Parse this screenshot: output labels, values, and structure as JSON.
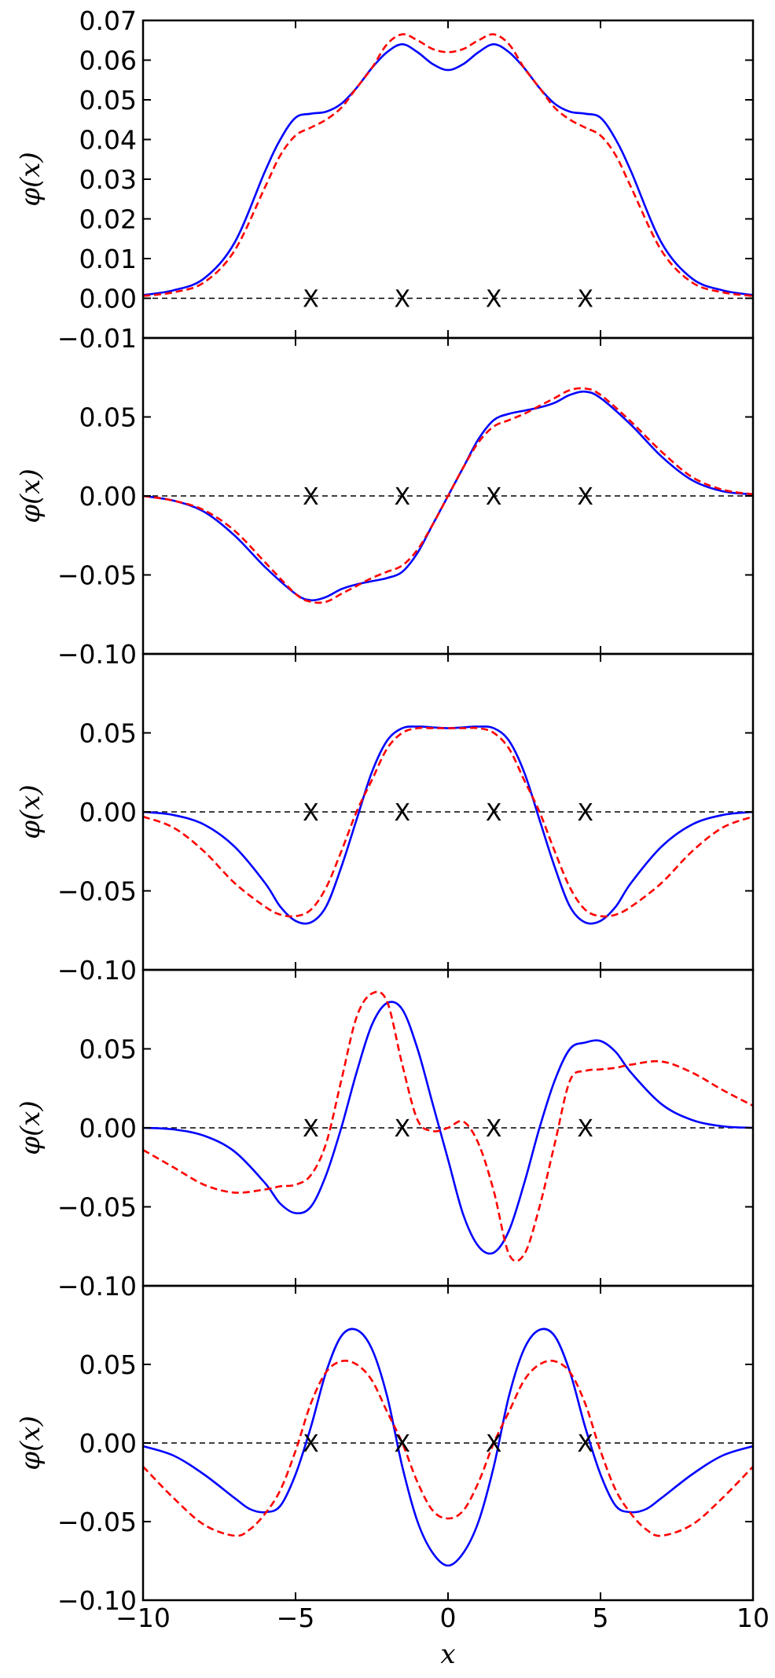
{
  "chart_data": [
    {
      "type": "line",
      "ylabel": "φ(x)",
      "xlim": [
        -10,
        10
      ],
      "ylim": [
        -0.01,
        0.07
      ],
      "yticks": [
        "0.07",
        "0.06",
        "0.05",
        "0.04",
        "0.03",
        "0.02",
        "0.01",
        "0.00",
        "−0.01"
      ],
      "ytick_values": [
        0.07,
        0.06,
        0.05,
        0.04,
        0.03,
        0.02,
        0.01,
        0.0,
        -0.01
      ],
      "x": [
        -10,
        -9,
        -8,
        -7,
        -6,
        -5.5,
        -5,
        -4.5,
        -4,
        -3.5,
        -3,
        -2.5,
        -2,
        -1.5,
        -1,
        -0.5,
        0,
        0.5,
        1,
        1.5,
        2,
        2.5,
        3,
        3.5,
        4,
        4.5,
        5,
        5.5,
        6,
        7,
        8,
        9,
        10
      ],
      "series": [
        {
          "values": [
            0.0008,
            0.002,
            0.005,
            0.014,
            0.032,
            0.04,
            0.0455,
            0.0465,
            0.047,
            0.049,
            0.053,
            0.058,
            0.062,
            0.064,
            0.062,
            0.059,
            0.0575,
            0.059,
            0.062,
            0.064,
            0.062,
            0.058,
            0.053,
            0.049,
            0.047,
            0.0465,
            0.0455,
            0.04,
            0.032,
            0.014,
            0.005,
            0.002,
            0.0008
          ],
          "color": "#0000ff",
          "dash": "solid"
        },
        {
          "values": [
            0.0006,
            0.0015,
            0.004,
            0.012,
            0.028,
            0.036,
            0.041,
            0.043,
            0.045,
            0.048,
            0.053,
            0.058,
            0.064,
            0.0665,
            0.065,
            0.0628,
            0.062,
            0.0628,
            0.065,
            0.0665,
            0.064,
            0.058,
            0.053,
            0.048,
            0.045,
            0.043,
            0.041,
            0.036,
            0.028,
            0.012,
            0.004,
            0.0015,
            0.0006
          ],
          "color": "#ff0000",
          "dash": "dashed"
        }
      ],
      "markers_x": [
        -4.5,
        -1.5,
        1.5,
        4.5
      ],
      "markers_y": 0,
      "marker_symbol": "X",
      "zero_line": true
    },
    {
      "type": "line",
      "ylabel": "φ(x)",
      "xlim": [
        -10,
        10
      ],
      "ylim": [
        -0.1,
        0.1
      ],
      "yticks": [
        "0.05",
        "0.00",
        "−0.05",
        "−0.10"
      ],
      "ytick_values": [
        0.05,
        0.0,
        -0.05,
        -0.1
      ],
      "x": [
        -10,
        -9,
        -8,
        -7,
        -6,
        -5,
        -4.5,
        -4,
        -3.5,
        -3,
        -2.5,
        -2,
        -1.5,
        -1,
        -0.5,
        0,
        0.5,
        1,
        1.5,
        2,
        2.5,
        3,
        3.5,
        4,
        4.5,
        5,
        6,
        7,
        8,
        9,
        10
      ],
      "series": [
        {
          "values": [
            0,
            -0.003,
            -0.01,
            -0.025,
            -0.045,
            -0.062,
            -0.066,
            -0.064,
            -0.059,
            -0.056,
            -0.054,
            -0.052,
            -0.048,
            -0.036,
            -0.018,
            0,
            0.018,
            0.036,
            0.048,
            0.052,
            0.054,
            0.056,
            0.059,
            0.064,
            0.066,
            0.062,
            0.045,
            0.025,
            0.01,
            0.003,
            0.001
          ],
          "color": "#0000ff",
          "dash": "solid"
        },
        {
          "values": [
            0,
            -0.003,
            -0.009,
            -0.022,
            -0.042,
            -0.062,
            -0.067,
            -0.067,
            -0.062,
            -0.057,
            -0.052,
            -0.048,
            -0.044,
            -0.034,
            -0.018,
            0,
            0.018,
            0.034,
            0.044,
            0.048,
            0.052,
            0.057,
            0.062,
            0.067,
            0.068,
            0.064,
            0.047,
            0.028,
            0.012,
            0.004,
            0.001
          ],
          "color": "#ff0000",
          "dash": "dashed"
        }
      ],
      "markers_x": [
        -4.5,
        -1.5,
        1.5,
        4.5
      ],
      "markers_y": 0,
      "marker_symbol": "X",
      "zero_line": true
    },
    {
      "type": "line",
      "ylabel": "φ(x)",
      "xlim": [
        -10,
        10
      ],
      "ylim": [
        -0.1,
        0.1
      ],
      "yticks": [
        "0.05",
        "0.00",
        "−0.05",
        "−0.10"
      ],
      "ytick_values": [
        0.05,
        0.0,
        -0.05,
        -0.1
      ],
      "x": [
        -10,
        -9,
        -8,
        -7,
        -6,
        -5.5,
        -5,
        -4.5,
        -4,
        -3.5,
        -3,
        -2.5,
        -2,
        -1.5,
        -1,
        -0.5,
        0,
        0.5,
        1,
        1.5,
        2,
        2.5,
        3,
        3.5,
        4,
        4.5,
        5,
        5.5,
        6,
        7,
        8,
        9,
        10
      ],
      "series": [
        {
          "values": [
            0,
            -0.002,
            -0.008,
            -0.022,
            -0.045,
            -0.06,
            -0.069,
            -0.07,
            -0.06,
            -0.035,
            -0.005,
            0.025,
            0.045,
            0.053,
            0.054,
            0.0535,
            0.053,
            0.0535,
            0.054,
            0.053,
            0.045,
            0.025,
            -0.005,
            -0.035,
            -0.06,
            -0.07,
            -0.069,
            -0.06,
            -0.045,
            -0.022,
            -0.008,
            -0.002,
            0
          ],
          "color": "#0000ff",
          "dash": "solid"
        },
        {
          "values": [
            -0.003,
            -0.01,
            -0.025,
            -0.045,
            -0.06,
            -0.065,
            -0.066,
            -0.062,
            -0.048,
            -0.025,
            0.0,
            0.02,
            0.04,
            0.05,
            0.053,
            0.053,
            0.053,
            0.053,
            0.053,
            0.05,
            0.04,
            0.02,
            0.0,
            -0.025,
            -0.048,
            -0.062,
            -0.066,
            -0.065,
            -0.06,
            -0.045,
            -0.025,
            -0.01,
            -0.003
          ],
          "color": "#ff0000",
          "dash": "dashed"
        }
      ],
      "markers_x": [
        -4.5,
        -1.5,
        1.5,
        4.5
      ],
      "markers_y": 0,
      "marker_symbol": "X",
      "zero_line": true
    },
    {
      "type": "line",
      "ylabel": "φ(x)",
      "xlim": [
        -10,
        10
      ],
      "ylim": [
        -0.1,
        0.1
      ],
      "yticks": [
        "0.05",
        "0.00",
        "−0.05",
        "−0.10"
      ],
      "ytick_values": [
        0.05,
        0.0,
        -0.05,
        -0.1
      ],
      "x": [
        -10,
        -9,
        -8,
        -7,
        -6,
        -5.5,
        -5,
        -4.5,
        -4,
        -3.5,
        -3,
        -2.5,
        -2,
        -1.5,
        -1,
        -0.5,
        0,
        0.5,
        1,
        1.5,
        2,
        2.5,
        3,
        3.5,
        4,
        4.5,
        5,
        5.5,
        6,
        7,
        8,
        9,
        10
      ],
      "series": [
        {
          "values": [
            0,
            -0.001,
            -0.005,
            -0.015,
            -0.035,
            -0.048,
            -0.054,
            -0.05,
            -0.03,
            0.0,
            0.035,
            0.065,
            0.079,
            0.075,
            0.05,
            0.015,
            -0.02,
            -0.055,
            -0.075,
            -0.079,
            -0.065,
            -0.035,
            0.0,
            0.03,
            0.05,
            0.054,
            0.055,
            0.048,
            0.035,
            0.015,
            0.005,
            0.001,
            0
          ],
          "color": "#0000ff",
          "dash": "solid"
        },
        {
          "values": [
            -0.014,
            -0.025,
            -0.036,
            -0.041,
            -0.039,
            -0.037,
            -0.036,
            -0.03,
            -0.01,
            0.03,
            0.07,
            0.085,
            0.08,
            0.04,
            0.005,
            -0.002,
            0.0,
            0.004,
            -0.01,
            -0.04,
            -0.08,
            -0.08,
            -0.05,
            -0.01,
            0.03,
            0.036,
            0.037,
            0.038,
            0.04,
            0.042,
            0.035,
            0.024,
            0.014
          ],
          "color": "#ff0000",
          "dash": "dashed"
        }
      ],
      "markers_x": [
        -4.5,
        -1.5,
        1.5,
        4.5
      ],
      "markers_y": 0,
      "marker_symbol": "X",
      "zero_line": true
    },
    {
      "type": "line",
      "ylabel": "φ(x)",
      "xlabel": "x",
      "xlim": [
        -10,
        10
      ],
      "ylim": [
        -0.1,
        0.1
      ],
      "yticks": [
        "0.05",
        "0.00",
        "−0.05",
        "−0.10"
      ],
      "ytick_values": [
        0.05,
        0.0,
        -0.05,
        -0.1
      ],
      "xticks": [
        "−10",
        "−5",
        "0",
        "5",
        "10"
      ],
      "xtick_values": [
        -10,
        -5,
        0,
        5,
        10
      ],
      "x": [
        -10,
        -9,
        -8,
        -7,
        -6.5,
        -6,
        -5.5,
        -5,
        -4.5,
        -4,
        -3.5,
        -3,
        -2.5,
        -2,
        -1.5,
        -1,
        -0.5,
        0,
        0.5,
        1,
        1.5,
        2,
        2.5,
        3,
        3.5,
        4,
        4.5,
        5,
        5.5,
        6,
        6.5,
        7,
        8,
        9,
        10
      ],
      "series": [
        {
          "values": [
            -0.002,
            -0.008,
            -0.02,
            -0.035,
            -0.042,
            -0.044,
            -0.04,
            -0.02,
            0.01,
            0.045,
            0.068,
            0.072,
            0.06,
            0.03,
            -0.015,
            -0.05,
            -0.07,
            -0.078,
            -0.07,
            -0.05,
            -0.015,
            0.03,
            0.06,
            0.072,
            0.068,
            0.045,
            0.01,
            -0.02,
            -0.04,
            -0.044,
            -0.042,
            -0.035,
            -0.02,
            -0.008,
            -0.002
          ],
          "color": "#0000ff",
          "dash": "solid"
        },
        {
          "values": [
            -0.015,
            -0.035,
            -0.052,
            -0.059,
            -0.055,
            -0.045,
            -0.03,
            -0.005,
            0.025,
            0.045,
            0.052,
            0.05,
            0.04,
            0.02,
            0.0,
            -0.025,
            -0.043,
            -0.048,
            -0.043,
            -0.025,
            0.0,
            0.02,
            0.04,
            0.05,
            0.052,
            0.045,
            0.025,
            -0.005,
            -0.03,
            -0.045,
            -0.055,
            -0.059,
            -0.052,
            -0.035,
            -0.015
          ],
          "color": "#ff0000",
          "dash": "dashed"
        }
      ],
      "markers_x": [
        -4.5,
        -1.5,
        1.5,
        4.5
      ],
      "markers_y": 0,
      "marker_symbol": "X",
      "zero_line": true
    }
  ]
}
